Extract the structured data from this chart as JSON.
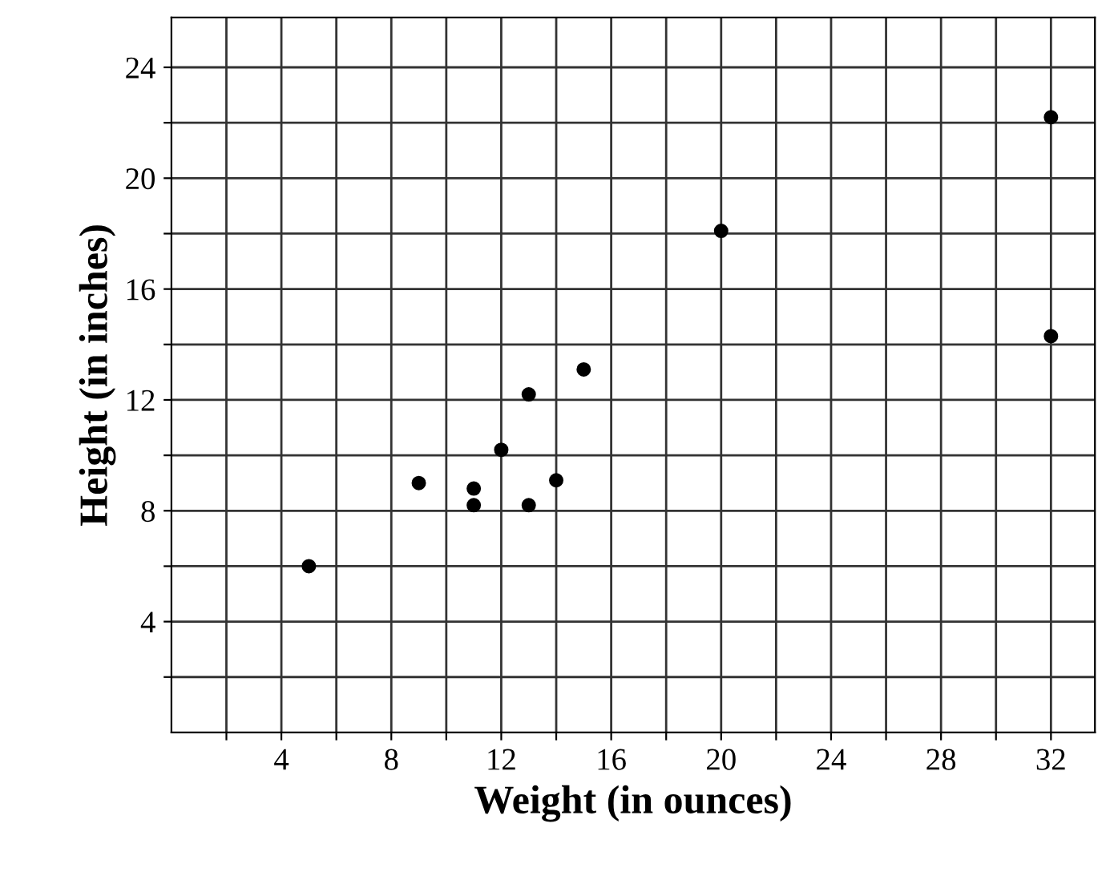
{
  "chart_data": {
    "type": "scatter",
    "xlabel": "Weight (in ounces)",
    "ylabel": "Height (in inches)",
    "x": [
      5,
      9,
      11,
      11,
      12,
      13,
      13,
      14,
      15,
      20,
      32,
      32
    ],
    "series": [
      {
        "color": "#000000",
        "values": [
          6,
          9,
          8.8,
          8.2,
          10.2,
          8.2,
          12.2,
          9.1,
          13.1,
          18.1,
          22.2,
          14.3
        ]
      }
    ],
    "xlim": [
      0,
      33.6
    ],
    "ylim": [
      0,
      25.8
    ],
    "xticks": [
      {
        "value": 2,
        "label": null
      },
      4,
      {
        "value": 6,
        "label": null
      },
      8,
      {
        "value": 10,
        "label": null
      },
      12,
      {
        "value": 14,
        "label": null
      },
      16,
      {
        "value": 18,
        "label": null
      },
      20,
      {
        "value": 22,
        "label": null
      },
      24,
      {
        "value": 26,
        "label": null
      },
      28,
      {
        "value": 30,
        "label": null
      },
      32
    ],
    "yticks": [
      {
        "value": 2,
        "label": null
      },
      4,
      {
        "value": 6,
        "label": null
      },
      8,
      {
        "value": 10,
        "label": null
      },
      12,
      {
        "value": 14,
        "label": null
      },
      16,
      {
        "value": 18,
        "label": null
      },
      20,
      {
        "value": 22,
        "label": null
      },
      24
    ],
    "grid": true,
    "marker": "circle"
  }
}
